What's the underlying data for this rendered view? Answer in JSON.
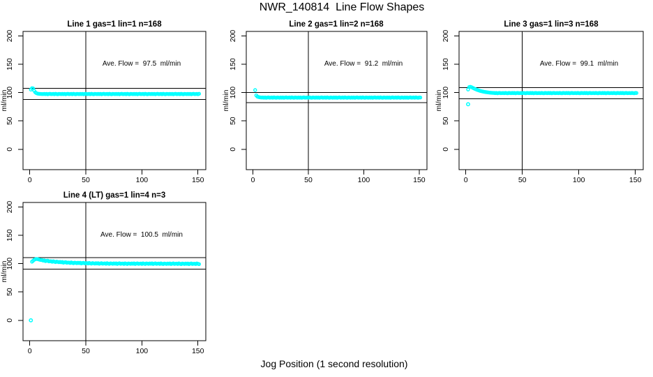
{
  "page_title": "NWR_140814  Line Flow Shapes",
  "x_axis_label": "Jog Position (1 second resolution)",
  "colors": {
    "points": "#00ffff",
    "lines": "#000000",
    "background": "#ffffff"
  },
  "chart_data": [
    {
      "type": "scatter",
      "title": "Line 1 gas=1 lin=1 n=168",
      "ylabel": "ml/min",
      "annotation": "Ave. Flow =  97.5  ml/min",
      "ave_flow": 97.5,
      "xlim": [
        -6,
        157
      ],
      "ylim": [
        -36,
        208
      ],
      "xticks": [
        0,
        50,
        100,
        150
      ],
      "yticks": [
        0,
        50,
        100,
        150,
        200
      ],
      "vline_x": 50,
      "hlines": [
        107.3,
        87.8
      ],
      "annotation_at": {
        "x": 100,
        "y": 150
      },
      "series": {
        "x_start": 1,
        "x_step": 1,
        "y": [
          105.3,
          107.8,
          107.4,
          103.2,
          100.4,
          99.0,
          98.2,
          97.9,
          97.7,
          97.6,
          97.5,
          97.5,
          97.7,
          97.3,
          97.8,
          97.1,
          97.6,
          97.9,
          97.3,
          97.5,
          97.7,
          97.2,
          97.9,
          97.4,
          97.1,
          97.7,
          97.6,
          97.3,
          97.7,
          97.3,
          97.8,
          97.1,
          97.6,
          97.9,
          97.3,
          97.5,
          97.7,
          97.2,
          97.9,
          97.4,
          97.1,
          97.7,
          97.6,
          97.3,
          97.7,
          97.3,
          97.8,
          97.1,
          97.6,
          97.9,
          97.3,
          97.5,
          97.7,
          97.2,
          97.9,
          97.4,
          97.1,
          97.7,
          97.6,
          97.3,
          97.7,
          97.3,
          97.8,
          97.1,
          97.6,
          97.9,
          97.3,
          97.5,
          97.7,
          97.2,
          97.9,
          97.4,
          97.1,
          97.7,
          97.6,
          97.3,
          97.7,
          97.3,
          97.8,
          97.1,
          97.6,
          97.9,
          97.3,
          97.5,
          97.7,
          97.2,
          97.9,
          97.4,
          97.1,
          97.7,
          97.6,
          97.3,
          97.7,
          97.3,
          97.8,
          97.1,
          97.6,
          97.9,
          97.3,
          97.5,
          97.7,
          97.2,
          97.9,
          97.4,
          97.1,
          97.7,
          97.6,
          97.3,
          97.7,
          97.3,
          97.8,
          97.1,
          97.6,
          97.9,
          97.3,
          97.5,
          97.7,
          97.2,
          97.9,
          97.4,
          97.1,
          97.7,
          97.6,
          97.3,
          97.7,
          97.3,
          97.8,
          97.1,
          97.6,
          97.9,
          97.3,
          97.5,
          97.7,
          97.2,
          97.9,
          97.4,
          97.1,
          97.7,
          97.6,
          97.3,
          97.7,
          97.3,
          97.8,
          97.1,
          97.6,
          97.9,
          97.3,
          97.5,
          97.7,
          97.2,
          97.9
        ]
      },
      "extra_points": []
    },
    {
      "type": "scatter",
      "title": "Line 2 gas=1 lin=2 n=168",
      "ylabel": "ml/min",
      "annotation": "Ave. Flow =  91.2  ml/min",
      "ave_flow": 91.2,
      "xlim": [
        -6,
        157
      ],
      "ylim": [
        -36,
        208
      ],
      "xticks": [
        0,
        50,
        100,
        150
      ],
      "yticks": [
        0,
        50,
        100,
        150,
        200
      ],
      "vline_x": 50,
      "hlines": [
        100.3,
        82.1
      ],
      "annotation_at": {
        "x": 100,
        "y": 150
      },
      "series": {
        "x_start": 2,
        "x_step": 1,
        "y": [
          104.5,
          95.2,
          93.0,
          92.2,
          91.8,
          91.5,
          91.3,
          91.4,
          91.0,
          91.5,
          90.8,
          91.3,
          91.6,
          91.0,
          91.2,
          91.4,
          90.9,
          91.6,
          91.1,
          90.8,
          91.4,
          91.3,
          90.9,
          91.4,
          91.0,
          91.5,
          90.8,
          91.3,
          91.6,
          91.0,
          91.2,
          91.4,
          90.9,
          91.6,
          91.1,
          90.8,
          91.4,
          91.3,
          90.9,
          91.4,
          91.0,
          91.5,
          90.8,
          91.3,
          91.6,
          91.0,
          91.2,
          91.4,
          90.9,
          91.6,
          91.1,
          90.8,
          91.4,
          91.3,
          90.9,
          91.4,
          91.0,
          91.5,
          90.8,
          91.3,
          91.6,
          91.0,
          91.2,
          91.4,
          90.9,
          91.6,
          91.1,
          90.8,
          91.4,
          91.3,
          90.9,
          91.4,
          91.0,
          91.5,
          90.8,
          91.3,
          91.6,
          91.0,
          91.2,
          91.4,
          90.9,
          91.6,
          91.1,
          90.8,
          91.4,
          91.3,
          90.9,
          91.4,
          91.0,
          91.5,
          90.8,
          91.3,
          91.6,
          91.0,
          91.2,
          91.4,
          90.9,
          91.6,
          91.1,
          90.8,
          91.4,
          91.3,
          90.9,
          91.4,
          91.0,
          91.5,
          90.8,
          91.3,
          91.6,
          91.0,
          91.2,
          91.4,
          90.9,
          91.6,
          91.1,
          90.8,
          91.4,
          91.3,
          90.9,
          91.4,
          91.0,
          91.5,
          90.8,
          91.3,
          91.6,
          91.0,
          91.2,
          91.4,
          90.9,
          91.6,
          91.1,
          90.8,
          91.4,
          91.3,
          90.9,
          91.4,
          91.0,
          91.5,
          90.8,
          91.3,
          91.6,
          91.0,
          91.2,
          91.4,
          90.9,
          91.6,
          91.1,
          90.8,
          91.4,
          91.3
        ]
      },
      "extra_points": []
    },
    {
      "type": "scatter",
      "title": "Line 3 gas=1 lin=3 n=168",
      "ylabel": "ml/min",
      "annotation": "Ave. Flow =  99.1  ml/min",
      "ave_flow": 99.1,
      "xlim": [
        -6,
        157
      ],
      "ylim": [
        -36,
        208
      ],
      "xticks": [
        0,
        50,
        100,
        150
      ],
      "yticks": [
        0,
        50,
        100,
        150,
        200
      ],
      "vline_x": 50,
      "hlines": [
        109.0,
        89.2
      ],
      "annotation_at": {
        "x": 100,
        "y": 150
      },
      "series": {
        "x_start": 2,
        "x_step": 1,
        "y": [
          105.5,
          109.8,
          110.2,
          109.6,
          108.6,
          107.6,
          106.6,
          105.7,
          104.9,
          104.2,
          103.5,
          102.9,
          102.4,
          101.9,
          101.5,
          101.1,
          100.8,
          100.5,
          100.2,
          100.0,
          99.8,
          99.6,
          99.5,
          99.4,
          99.1,
          99.4,
          98.9,
          99.3,
          99.5,
          99.0,
          99.2,
          99.3,
          99.0,
          99.5,
          99.1,
          98.9,
          99.4,
          99.3,
          99.0,
          99.4,
          99.1,
          99.4,
          98.9,
          99.3,
          99.5,
          99.0,
          99.2,
          99.3,
          99.0,
          99.5,
          99.1,
          98.9,
          99.4,
          99.3,
          99.0,
          99.4,
          99.1,
          99.4,
          98.9,
          99.3,
          99.5,
          99.0,
          99.2,
          99.3,
          99.0,
          99.5,
          99.1,
          98.9,
          99.4,
          99.3,
          99.0,
          99.4,
          99.1,
          99.4,
          98.9,
          99.3,
          99.5,
          99.0,
          99.2,
          99.3,
          99.0,
          99.5,
          99.1,
          98.9,
          99.4,
          99.3,
          99.0,
          99.4,
          99.1,
          99.4,
          98.9,
          99.3,
          99.5,
          99.0,
          99.2,
          99.3,
          99.0,
          99.5,
          99.1,
          98.9,
          99.4,
          99.3,
          99.0,
          99.4,
          99.1,
          99.4,
          98.9,
          99.3,
          99.5,
          99.0,
          99.2,
          99.3,
          99.0,
          99.5,
          99.1,
          98.9,
          99.4,
          99.3,
          99.0,
          99.4,
          99.1,
          99.4,
          98.9,
          99.3,
          99.5,
          99.0,
          99.2,
          99.3,
          99.0,
          99.5,
          99.1,
          98.9,
          99.4,
          99.3,
          99.0,
          99.4,
          99.1,
          99.4,
          98.9,
          99.3,
          99.5,
          99.0,
          99.2,
          99.3,
          99.0,
          99.5,
          99.1,
          98.9,
          99.4,
          99.3
        ]
      },
      "extra_points": [
        {
          "x": 2,
          "y": 79.5
        }
      ]
    },
    {
      "type": "scatter",
      "title": "Line 4 (LT) gas=1 lin=4 n=3",
      "ylabel": "ml/min",
      "annotation": "Ave. Flow =  100.5  ml/min",
      "ave_flow": 100.5,
      "xlim": [
        -6,
        157
      ],
      "ylim": [
        -36,
        208
      ],
      "xticks": [
        0,
        50,
        100,
        150
      ],
      "yticks": [
        0,
        50,
        100,
        150,
        200
      ],
      "vline_x": 50,
      "hlines": [
        110.6,
        90.5
      ],
      "annotation_at": {
        "x": 100,
        "y": 150
      },
      "series": {
        "x_start": 2,
        "x_step": 1,
        "y": [
          103.5,
          105.2,
          106.8,
          107.8,
          108.2,
          107.9,
          107.4,
          106.9,
          106.4,
          106.2,
          105.4,
          105.8,
          104.5,
          105.0,
          105.3,
          104.0,
          104.2,
          104.2,
          103.3,
          104.3,
          103.4,
          102.8,
          103.6,
          103.2,
          102.5,
          103.2,
          102.4,
          103.0,
          101.7,
          102.3,
          102.7,
          101.6,
          101.9,
          102.0,
          101.2,
          102.2,
          101.4,
          100.8,
          101.8,
          101.4,
          100.9,
          101.6,
          101.0,
          101.6,
          100.4,
          101.1,
          101.5,
          100.5,
          100.8,
          101.0,
          100.2,
          101.3,
          100.5,
          100.0,
          101.0,
          100.6,
          100.1,
          100.8,
          100.2,
          100.9,
          99.8,
          100.4,
          100.9,
          99.9,
          100.3,
          100.5,
          99.7,
          100.8,
          100.1,
          99.6,
          100.6,
          100.3,
          99.7,
          100.5,
          99.9,
          100.6,
          99.5,
          100.2,
          100.7,
          99.7,
          100.1,
          100.3,
          99.5,
          100.6,
          99.9,
          99.4,
          100.4,
          100.1,
          99.6,
          100.4,
          99.8,
          100.5,
          99.4,
          100.1,
          100.6,
          99.6,
          100.0,
          100.2,
          99.5,
          100.6,
          99.9,
          99.4,
          100.4,
          100.1,
          99.6,
          100.4,
          99.8,
          100.5,
          99.4,
          100.1,
          100.6,
          99.6,
          100.0,
          100.2,
          99.5,
          100.6,
          99.8,
          99.3,
          100.3,
          100.0,
          99.5,
          100.3,
          99.7,
          100.4,
          99.3,
          100.0,
          100.5,
          99.5,
          99.9,
          100.1,
          99.4,
          100.5,
          99.8,
          99.2,
          100.2,
          99.9,
          99.4,
          100.2,
          99.6,
          100.3,
          99.2,
          99.9,
          100.4,
          99.4,
          99.8,
          100.0,
          99.3,
          100.4,
          99.7,
          99.2
        ]
      },
      "extra_points": [
        {
          "x": 1,
          "y": 0
        }
      ]
    }
  ]
}
